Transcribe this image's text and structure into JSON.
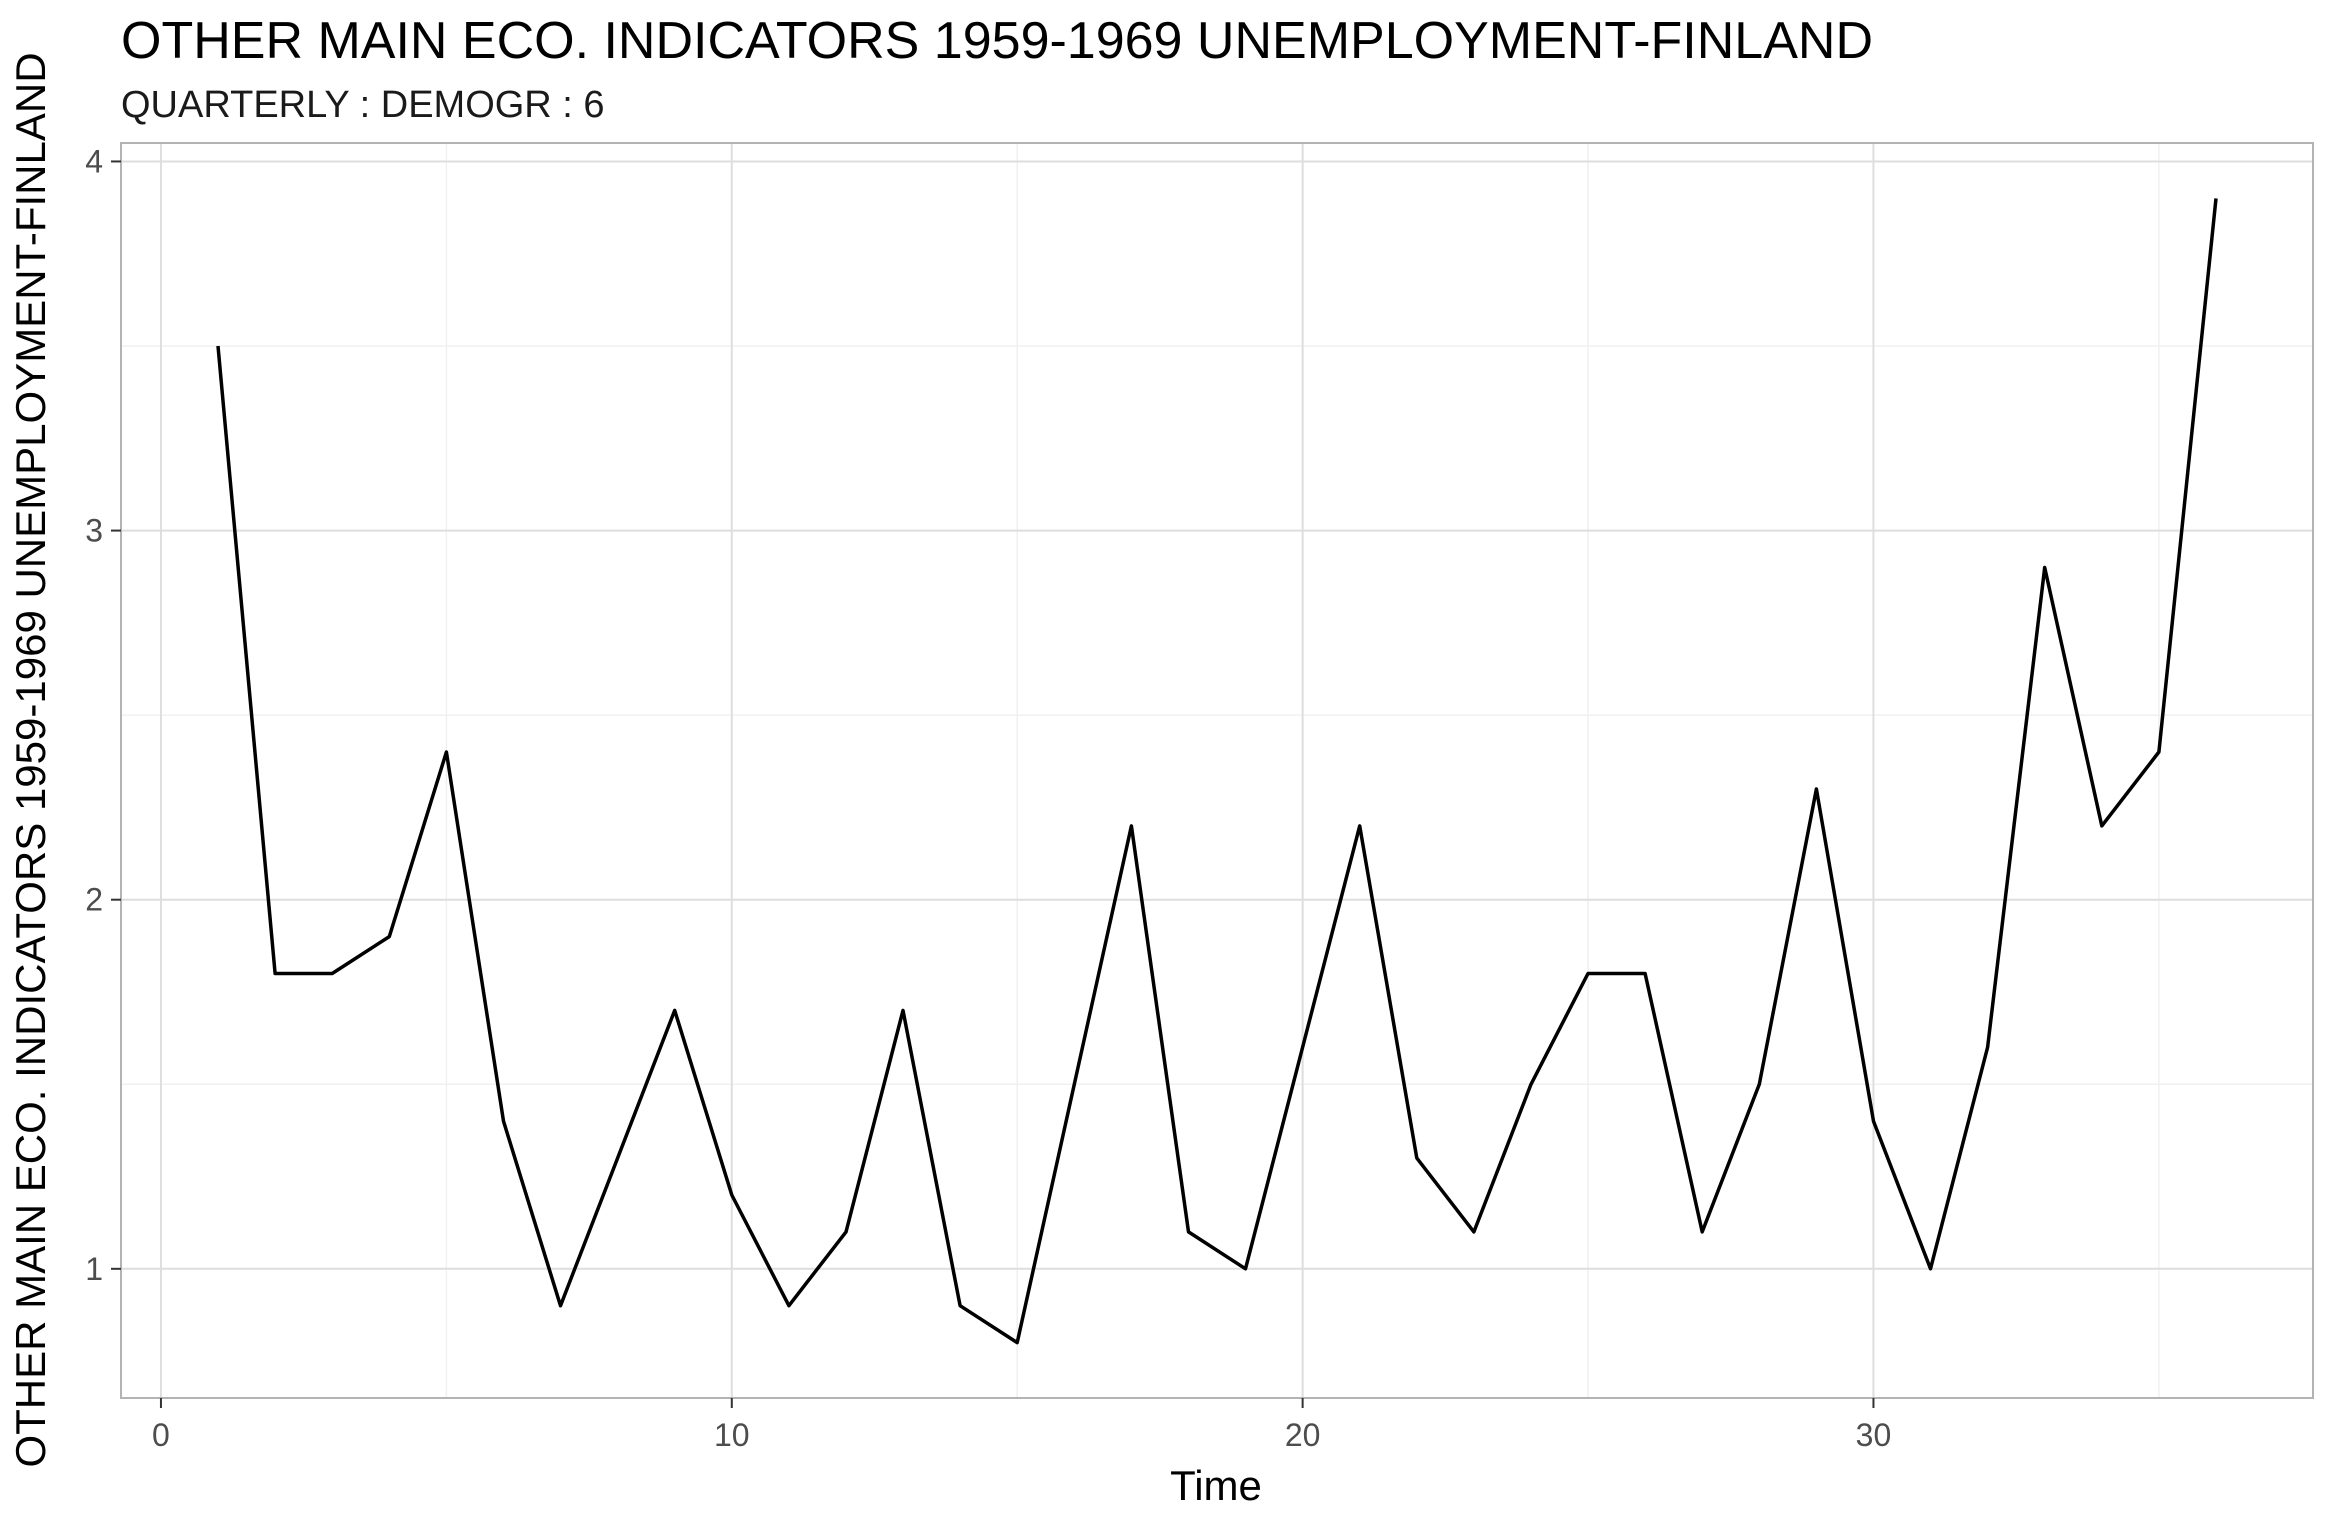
{
  "chart_data": {
    "type": "line",
    "title": "OTHER MAIN ECO. INDICATORS 1959-1969 UNEMPLOYMENT-FINLAND",
    "subtitle": "QUARTERLY : DEMOGR : 6",
    "xlabel": "Time",
    "ylabel": "OTHER MAIN ECO. INDICATORS 1959-1969 UNEMPLOYMENT-FINLAND",
    "xlim": [
      -0.7,
      37.7
    ],
    "ylim": [
      0.65,
      4.05
    ],
    "x_ticks": [
      0,
      10,
      20,
      30
    ],
    "y_ticks": [
      1,
      2,
      3,
      4
    ],
    "grid": true,
    "line_color": "#000000",
    "series": [
      {
        "x": [
          1,
          2,
          3,
          4,
          5,
          6,
          7,
          8,
          9,
          10,
          11,
          12,
          13,
          14,
          15,
          16,
          17,
          18,
          19,
          20,
          21,
          22,
          23,
          24,
          25,
          26,
          27,
          28,
          29,
          30,
          31,
          32,
          33,
          34,
          35,
          36
        ],
        "values": [
          3.5,
          1.8,
          1.8,
          1.9,
          2.4,
          1.4,
          0.9,
          1.3,
          1.7,
          1.2,
          0.9,
          1.1,
          1.7,
          0.9,
          0.8,
          1.5,
          2.2,
          1.1,
          1.0,
          1.6,
          2.2,
          1.3,
          1.1,
          1.5,
          1.8,
          1.8,
          1.1,
          1.5,
          2.3,
          1.4,
          1.0,
          1.6,
          2.9,
          2.2,
          2.4,
          3.9
        ]
      }
    ]
  }
}
